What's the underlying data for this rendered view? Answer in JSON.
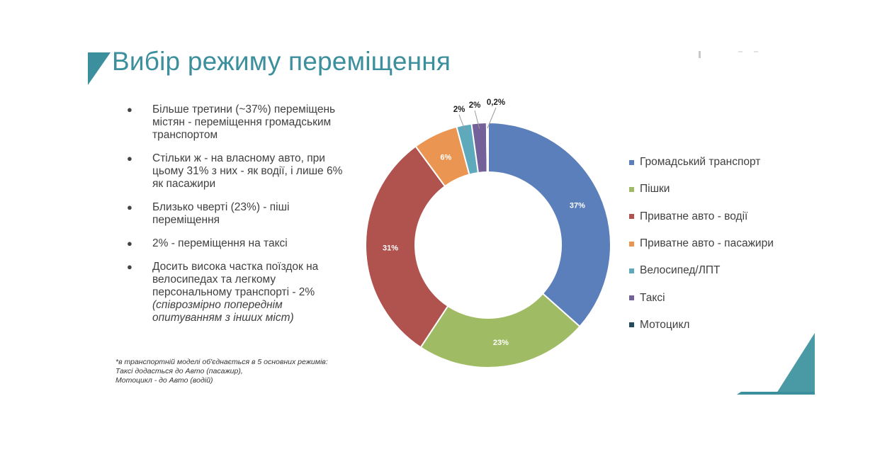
{
  "slide": {
    "title": "Вибір режиму переміщення",
    "accent_color": "#3c8f9c"
  },
  "bullets": [
    {
      "text": "Більше третини (~37%) переміщень містян - переміщення громадським транспортом",
      "note": ""
    },
    {
      "text": "Стільки ж - на власному авто, при цьому 31% з них - як водії, і лише 6% як пасажири",
      "note": ""
    },
    {
      "text": "Близько чверті (23%) - піші переміщення",
      "note": ""
    },
    {
      "text": "2% - переміщення на таксі",
      "note": ""
    },
    {
      "text": "Досить висока частка поїздок на велосипедах та легкому персональному транспорті - 2%",
      "note": "(співрозмірно попереднім опитуванням з інших міст)"
    }
  ],
  "bullet_marker": "●",
  "footnote": [
    "*в транспортній моделі об'єднається в 5 основних режимів:",
    "Таксі додасться до Авто (пасажир),",
    "Мотоцикл - до Авто (водій)"
  ],
  "chart_data": {
    "type": "pie",
    "variant": "donut",
    "title": "",
    "legend_position": "right",
    "slices": [
      {
        "label": "Громадський транспорт",
        "value": 37,
        "data_label": "37%",
        "color": "#5b7fbb",
        "label_placement": "inside"
      },
      {
        "label": "Пішки",
        "value": 23,
        "data_label": "23%",
        "color": "#9fbb63",
        "label_placement": "inside"
      },
      {
        "label": "Приватне авто - водії",
        "value": 31,
        "data_label": "31%",
        "color": "#b0534f",
        "label_placement": "inside"
      },
      {
        "label": "Приватне авто - пасажири",
        "value": 6,
        "data_label": "6%",
        "color": "#ea9652",
        "label_placement": "inside"
      },
      {
        "label": "Велосипед/ЛПТ",
        "value": 2,
        "data_label": "2%",
        "color": "#5fa9bd",
        "label_placement": "outside"
      },
      {
        "label": "Таксі",
        "value": 2,
        "data_label": "2%",
        "color": "#74619a",
        "label_placement": "outside"
      },
      {
        "label": "Мотоцикл",
        "value": 0.2,
        "data_label": "0,2%",
        "color": "#244a5e",
        "label_placement": "outside"
      }
    ]
  }
}
